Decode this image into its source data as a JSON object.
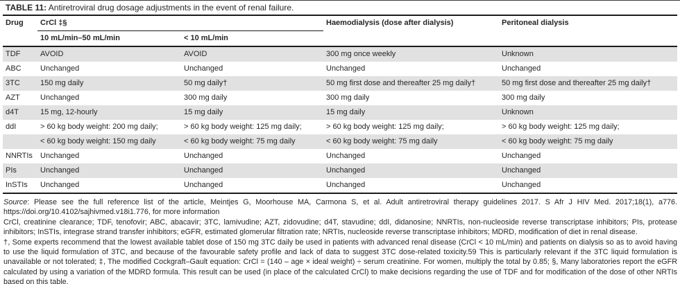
{
  "title": {
    "label": "TABLE 11:",
    "caption": " Antiretroviral drug dosage adjustments in the event of renal failure."
  },
  "colors": {
    "row_stripe": "#e1e1e1",
    "rule": "#1a1a1a",
    "text": "#262626",
    "background": "#ffffff"
  },
  "table": {
    "columns": {
      "drug": "Drug",
      "crcl_group": "CrCl ‡§",
      "crcl_sub1": "10 mL/min–50 mL/min",
      "crcl_sub2": "< 10 mL/min",
      "haemodialysis": "Haemodialysis (dose after dialysis)",
      "peritoneal": "Peritoneal dialysis"
    },
    "rows": [
      {
        "drug": "TDF",
        "crcl_10_50": "AVOID",
        "crcl_lt10": "AVOID",
        "haemodialysis": "300 mg once weekly",
        "peritoneal": "Unknown"
      },
      {
        "drug": "ABC",
        "crcl_10_50": "Unchanged",
        "crcl_lt10": "Unchanged",
        "haemodialysis": "Unchanged",
        "peritoneal": "Unchanged"
      },
      {
        "drug": "3TC",
        "crcl_10_50": "150 mg daily",
        "crcl_lt10": "50 mg daily†",
        "haemodialysis": "50 mg first dose and thereafter 25 mg daily†",
        "peritoneal": "50 mg first dose and thereafter 25 mg daily†"
      },
      {
        "drug": "AZT",
        "crcl_10_50": "Unchanged",
        "crcl_lt10": "300 mg daily",
        "haemodialysis": "300 mg daily",
        "peritoneal": "300 mg daily"
      },
      {
        "drug": "d4T",
        "crcl_10_50": "15 mg, 12-hourly",
        "crcl_lt10": "15 mg daily",
        "haemodialysis": "15 mg daily",
        "peritoneal": "Unknown"
      },
      {
        "drug": "ddI",
        "crcl_10_50": "> 60 kg body weight: 200 mg daily;",
        "crcl_lt10": "> 60 kg body weight: 125 mg daily;",
        "haemodialysis": "> 60 kg body weight: 125 mg daily;",
        "peritoneal": "> 60 kg body weight: 125 mg daily;"
      },
      {
        "drug": "",
        "crcl_10_50": "< 60 kg body weight: 150 mg daily",
        "crcl_lt10": "< 60 kg body weight: 75 mg daily",
        "haemodialysis": "< 60 kg body weight: 75 mg daily",
        "peritoneal": "< 60 kg body weight: 75 mg daily"
      },
      {
        "drug": "NNRTIs",
        "crcl_10_50": "Unchanged",
        "crcl_lt10": "Unchanged",
        "haemodialysis": "Unchanged",
        "peritoneal": "Unchanged"
      },
      {
        "drug": "PIs",
        "crcl_10_50": "Unchanged",
        "crcl_lt10": "Unchanged",
        "haemodialysis": "Unchanged",
        "peritoneal": "Unchanged"
      },
      {
        "drug": "InSTIs",
        "crcl_10_50": "Unchanged",
        "crcl_lt10": "Unchanged",
        "haemodialysis": "Unchanged",
        "peritoneal": "Unchanged"
      }
    ]
  },
  "footer": {
    "source_label": "Source",
    "source_text": ": Please see the full reference list of the article, Meintjes G, Moorhouse MA, Carmona S, et al. Adult antiretroviral therapy guidelines 2017. S Afr J HIV Med. 2017;18(1), a776. https://doi.org/10.4102/sajhivmed.v18i1.776, for more information",
    "abbreviations": "CrCl, creatinine clearance; TDF, tenofovir; ABC, abacavir; 3TC, lamivudine; AZT, zidovudine; d4T, stavudine; ddI, didanosine; NNRTIs, non-nucleoside reverse transcriptase inhibitors; PIs, protease inhibitors; InSTIs, integrase strand transfer inhibitors; eGFR, estimated glomerular filtration rate; NRTIs, nucleoside reverse transcriptase inhibitors; MDRD, modification of diet in renal disease.",
    "footnotes": "†, Some experts recommend that the lowest available tablet dose of 150 mg 3TC daily be used in patients with advanced renal disease (CrCl < 10 mL/min) and patients on dialysis so as to avoid having to use the liquid formulation of 3TC, and because of the favourable safety profile and lack of data to suggest 3TC dose-related toxicity.59 This is particularly relevant if the 3TC liquid formulation is unavailable or not tolerated; ‡, The modified Cockgraft–Gault equation: CrCl = (140 – age × ideal weight) ÷ serum creatinine. For women, multiply the total by 0.85; §, Many laboratories report the eGFR calculated by using a variation of the MDRD formula. This result can be used (in place of the calculated CrCl) to make decisions regarding the use of TDF and for modification of the dose of other NRTIs based on this table."
  }
}
